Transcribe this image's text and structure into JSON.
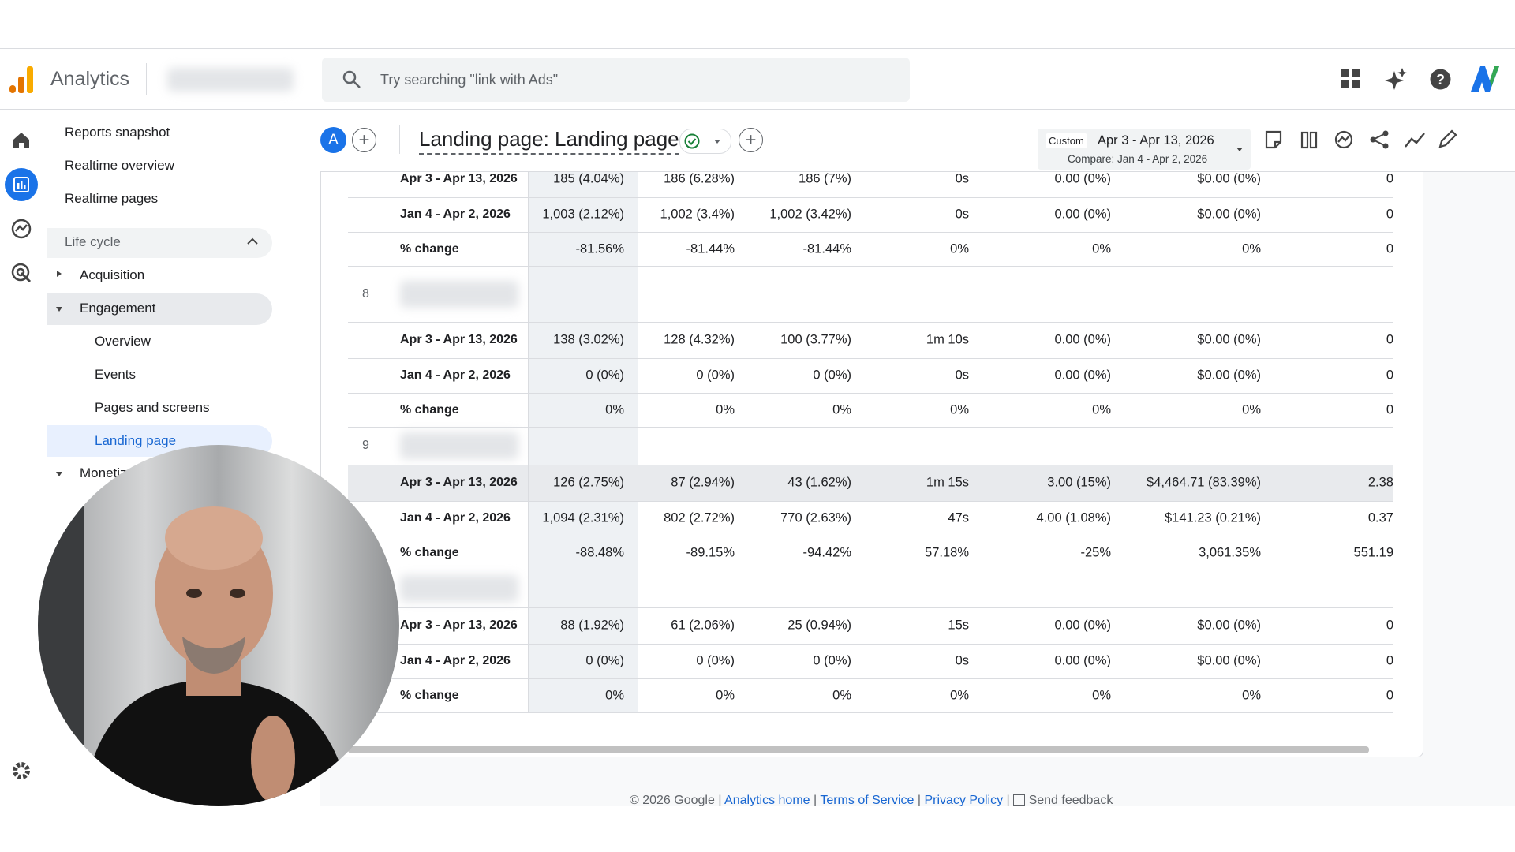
{
  "header": {
    "app_name": "Analytics",
    "search_placeholder": "Try searching \"link with Ads\""
  },
  "sidebar": {
    "items": [
      "Reports snapshot",
      "Realtime overview",
      "Realtime pages"
    ],
    "section": "Life cycle",
    "groups": [
      "Acquisition",
      "Engagement"
    ],
    "subitems": [
      "Overview",
      "Events",
      "Pages and screens",
      "Landing page"
    ],
    "next_group": "Monetization"
  },
  "report": {
    "avatar": "A",
    "title": "Landing page: Landing page",
    "date_badge": "Custom",
    "date_range": "Apr 3 - Apr 13, 2026",
    "compare": "Compare: Jan 4 - Apr 2, 2026"
  },
  "table": {
    "groups": [
      {
        "rows": [
          {
            "label": "Apr 3 - Apr 13, 2026",
            "cells": [
              "185 (4.04%)",
              "186 (6.28%)",
              "186 (7%)",
              "0s",
              "0.00 (0%)",
              "$0.00 (0%)",
              "0"
            ]
          },
          {
            "label": "Jan 4 - Apr 2, 2026",
            "cells": [
              "1,003 (2.12%)",
              "1,002 (3.4%)",
              "1,002 (3.42%)",
              "0s",
              "0.00 (0%)",
              "$0.00 (0%)",
              "0"
            ]
          },
          {
            "label": "% change",
            "cells": [
              "-81.56%",
              "-81.44%",
              "-81.44%",
              "0%",
              "0%",
              "0%",
              "0"
            ]
          }
        ]
      },
      {
        "number": "8",
        "rows": [
          {
            "label": "Apr 3 - Apr 13, 2026",
            "cells": [
              "138 (3.02%)",
              "128 (4.32%)",
              "100 (3.77%)",
              "1m 10s",
              "0.00 (0%)",
              "$0.00 (0%)",
              "0"
            ]
          },
          {
            "label": "Jan 4 - Apr 2, 2026",
            "cells": [
              "0 (0%)",
              "0 (0%)",
              "0 (0%)",
              "0s",
              "0.00 (0%)",
              "$0.00 (0%)",
              "0"
            ]
          },
          {
            "label": "% change",
            "cells": [
              "0%",
              "0%",
              "0%",
              "0%",
              "0%",
              "0%",
              "0"
            ]
          }
        ]
      },
      {
        "number": "9",
        "rows": [
          {
            "label": "Apr 3 - Apr 13, 2026",
            "cells": [
              "126 (2.75%)",
              "87 (2.94%)",
              "43 (1.62%)",
              "1m 15s",
              "3.00 (15%)",
              "$4,464.71 (83.39%)",
              "2.38"
            ]
          },
          {
            "label": "Jan 4 - Apr 2, 2026",
            "cells": [
              "1,094 (2.31%)",
              "802 (2.72%)",
              "770 (2.63%)",
              "47s",
              "4.00 (1.08%)",
              "$141.23 (0.21%)",
              "0.37"
            ]
          },
          {
            "label": "% change",
            "cells": [
              "-88.48%",
              "-89.15%",
              "-94.42%",
              "57.18%",
              "-25%",
              "3,061.35%",
              "551.19"
            ]
          }
        ]
      },
      {
        "rows": [
          {
            "label": "Apr 3 - Apr 13, 2026",
            "cells": [
              "88 (1.92%)",
              "61 (2.06%)",
              "25 (0.94%)",
              "15s",
              "0.00 (0%)",
              "$0.00 (0%)",
              "0"
            ]
          },
          {
            "label": "Jan 4 - Apr 2, 2026",
            "cells": [
              "0 (0%)",
              "0 (0%)",
              "0 (0%)",
              "0s",
              "0.00 (0%)",
              "$0.00 (0%)",
              "0"
            ]
          },
          {
            "label": "% change",
            "cells": [
              "0%",
              "0%",
              "0%",
              "0%",
              "0%",
              "0%",
              "0"
            ]
          }
        ]
      }
    ]
  },
  "footer": {
    "copyright": "© 2026 Google",
    "links": [
      "Analytics home",
      "Terms of Service",
      "Privacy Policy"
    ],
    "feedback": "Send feedback"
  }
}
